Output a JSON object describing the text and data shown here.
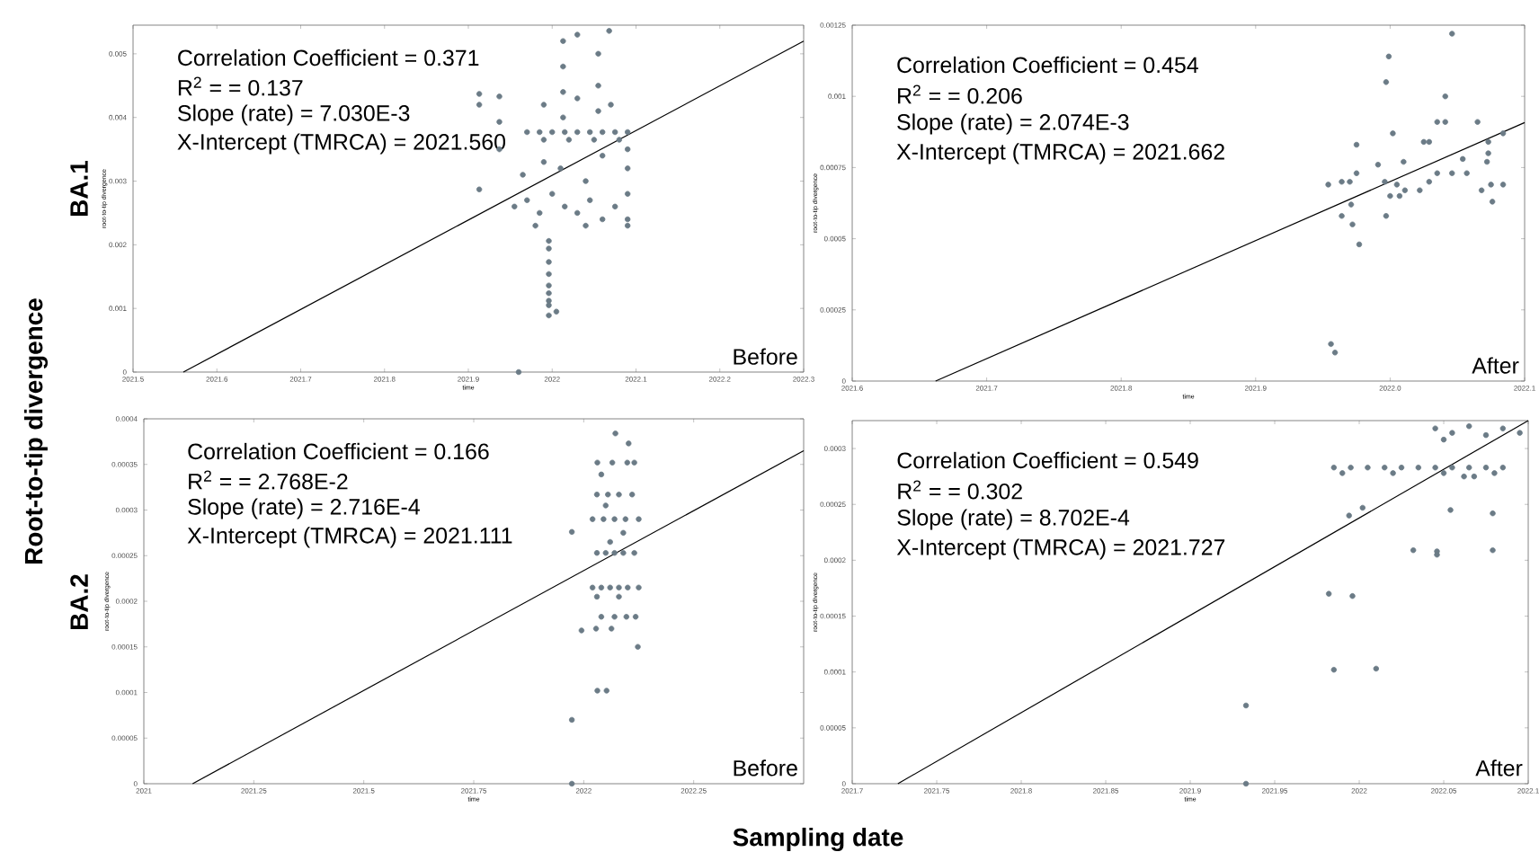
{
  "chart_data": [
    {
      "type": "scatter",
      "xlabel": "time",
      "ylabel": "root-to-tip divergence",
      "xlim": [
        2021.5,
        2022.3
      ],
      "ylim": [
        0,
        0.00545
      ],
      "xticks": [
        {
          "value": 2021.5,
          "label": "2021.5"
        },
        {
          "value": 2021.6,
          "label": "2021.6"
        },
        {
          "value": 2021.7,
          "label": "2021.7"
        },
        {
          "value": 2021.8,
          "label": "2021.8"
        },
        {
          "value": 2021.9,
          "label": "2021.9"
        },
        {
          "value": 2022,
          "label": "2022"
        },
        {
          "value": 2022.1,
          "label": "2022.1"
        },
        {
          "value": 2022.2,
          "label": "2022.2"
        },
        {
          "value": 2022.3,
          "label": "2022.3"
        }
      ],
      "yticks": [
        {
          "value": 0,
          "label": "0"
        },
        {
          "value": 0.001,
          "label": "0.001"
        },
        {
          "value": 0.002,
          "label": "0.002"
        },
        {
          "value": 0.003,
          "label": "0.003"
        },
        {
          "value": 0.004,
          "label": "0.004"
        },
        {
          "value": 0.005,
          "label": "0.005"
        }
      ],
      "annotations": [
        "Correlation Coefficient = 0.371",
        "R$^{2}$ = = 0.137",
        "Slope (rate) = 7.030E-3",
        "X-Intercept (TMRCA) = 2021.560",
        "Before",
        "BA.1",
        "Root-to-tip divergence"
      ],
      "series": [
        {
          "marker": "circle",
          "color": "#6b7b86",
          "x": [
            2021.96,
            2021.996,
            2021.996,
            2021.996,
            2021.996,
            2021.996,
            2021.996,
            2021.996,
            2021.996,
            2021.996,
            2022.005,
            2021.913,
            2021.913,
            2021.913,
            2021.937,
            2021.937,
            2021.937,
            2021.97,
            2021.985,
            2022.0,
            2022.015,
            2022.03,
            2022.045,
            2022.06,
            2022.075,
            2022.09,
            2021.99,
            2022.02,
            2022.05,
            2022.08,
            2021.955,
            2021.97,
            2021.985,
            2022.0,
            2022.015,
            2022.03,
            2022.045,
            2022.06,
            2022.075,
            2022.09,
            2022.09,
            2022.09,
            2021.98,
            2022.04,
            2021.965,
            2021.99,
            2022.01,
            2022.04,
            2022.06,
            2022.09,
            2022.09,
            2022.013,
            2022.013,
            2022.013,
            2022.013,
            2022.03,
            2022.068,
            2022.055,
            2022.055,
            2022.055,
            2021.99,
            2022.03,
            2022.07
          ],
          "values": [
            0.0,
            0.00089,
            0.00105,
            0.00112,
            0.00124,
            0.00136,
            0.00154,
            0.00173,
            0.00194,
            0.00206,
            0.00095,
            0.00437,
            0.0042,
            0.00287,
            0.00433,
            0.00393,
            0.0035,
            0.00377,
            0.00377,
            0.00377,
            0.00377,
            0.00377,
            0.00377,
            0.00377,
            0.00377,
            0.00377,
            0.00365,
            0.00365,
            0.00365,
            0.00365,
            0.0026,
            0.0027,
            0.0025,
            0.0028,
            0.0026,
            0.0025,
            0.0027,
            0.0024,
            0.0026,
            0.0028,
            0.0024,
            0.0023,
            0.0023,
            0.0023,
            0.0031,
            0.0033,
            0.0032,
            0.003,
            0.0034,
            0.0032,
            0.0035,
            0.0052,
            0.0048,
            0.0044,
            0.004,
            0.0053,
            0.00536,
            0.005,
            0.0045,
            0.0041,
            0.0042,
            0.0043,
            0.0042
          ]
        },
        {
          "type": "line",
          "marker": "none",
          "color": "#000000",
          "x": [
            2021.56,
            2022.3
          ],
          "values": [
            0,
            0.0052
          ]
        }
      ]
    },
    {
      "type": "scatter",
      "xlabel": "time",
      "ylabel": "root-to-tip divergence",
      "xlim": [
        2021.6,
        2022.1
      ],
      "ylim": [
        0,
        0.00125
      ],
      "xticks": [
        {
          "value": 2021.6,
          "label": "2021.6"
        },
        {
          "value": 2021.7,
          "label": "2021.7"
        },
        {
          "value": 2021.8,
          "label": "2021.8"
        },
        {
          "value": 2021.9,
          "label": "2021.9"
        },
        {
          "value": 2022.0,
          "label": "2022.0"
        },
        {
          "value": 2022.1,
          "label": "2022.1"
        }
      ],
      "yticks": [
        {
          "value": 0,
          "label": "0"
        },
        {
          "value": 0.00025,
          "label": "0.00025"
        },
        {
          "value": 0.0005,
          "label": "0.0005"
        },
        {
          "value": 0.00075,
          "label": "0.00075"
        },
        {
          "value": 0.001,
          "label": "0.001"
        },
        {
          "value": 0.00125,
          "label": "0.00125"
        }
      ],
      "annotations": [
        "Correlation Coefficient = 0.454",
        "R$^{2}$ = = 0.206",
        "Slope (rate) = 2.074E-3",
        "X-Intercept (TMRCA) = 2021.662",
        "After"
      ],
      "series": [
        {
          "marker": "circle",
          "color": "#6b7b86",
          "x": [
            2022.046,
            2021.999,
            2021.997,
            2022.041,
            2022.035,
            2022.041,
            2022.065,
            2022.002,
            2021.975,
            2022.025,
            2022.029,
            2022.073,
            2022.084,
            2022.01,
            2021.991,
            2022.054,
            2022.072,
            2022.073,
            2022.035,
            2022.046,
            2022.057,
            2021.954,
            2021.964,
            2021.97,
            2021.975,
            2021.996,
            2022.005,
            2022.011,
            2022.022,
            2022.029,
            2022.068,
            2022.075,
            2022.084,
            2022.076,
            2021.971,
            2021.964,
            2021.972,
            2021.997,
            2021.977,
            2021.956,
            2021.959,
            2022.0,
            2022.007
          ],
          "values": [
            0.00122,
            0.00114,
            0.00105,
            0.001,
            0.00091,
            0.00091,
            0.00091,
            0.00087,
            0.00083,
            0.00084,
            0.00084,
            0.00084,
            0.00087,
            0.00077,
            0.00076,
            0.00078,
            0.00077,
            0.0008,
            0.00073,
            0.00073,
            0.00073,
            0.00069,
            0.0007,
            0.0007,
            0.00073,
            0.0007,
            0.00069,
            0.00067,
            0.00067,
            0.0007,
            0.00067,
            0.00069,
            0.00069,
            0.00063,
            0.00062,
            0.00058,
            0.00055,
            0.00058,
            0.00048,
            0.00013,
            0.0001,
            0.00065,
            0.00065
          ]
        },
        {
          "type": "line",
          "marker": "none",
          "color": "#000000",
          "x": [
            2021.662,
            2022.1
          ],
          "values": [
            0,
            0.000908
          ]
        }
      ]
    },
    {
      "type": "scatter",
      "xlabel": "time",
      "ylabel": "root-to-tip divergence",
      "xlim": [
        2021,
        2022.5
      ],
      "ylim": [
        0,
        0.0004
      ],
      "xticks": [
        {
          "value": 2021,
          "label": "2021"
        },
        {
          "value": 2021.25,
          "label": "2021.25"
        },
        {
          "value": 2021.5,
          "label": "2021.5"
        },
        {
          "value": 2021.75,
          "label": "2021.75"
        },
        {
          "value": 2022,
          "label": "2022"
        },
        {
          "value": 2022.25,
          "label": "2022.25"
        }
      ],
      "yticks": [
        {
          "value": 0,
          "label": "0"
        },
        {
          "value": 5e-05,
          "label": "0.00005"
        },
        {
          "value": 0.0001,
          "label": "0.0001"
        },
        {
          "value": 0.00015,
          "label": "0.00015"
        },
        {
          "value": 0.0002,
          "label": "0.0002"
        },
        {
          "value": 0.00025,
          "label": "0.00025"
        },
        {
          "value": 0.0003,
          "label": "0.0003"
        },
        {
          "value": 0.00035,
          "label": "0.00035"
        },
        {
          "value": 0.0004,
          "label": "0.0004"
        }
      ],
      "annotations": [
        "Correlation Coefficient = 0.166",
        "R$^{2}$ = = 2.768E-2",
        "Slope (rate) = 2.716E-4",
        "X-Intercept (TMRCA) = 2021.111",
        "Before",
        "BA.2",
        "Sampling date"
      ],
      "series": [
        {
          "marker": "circle",
          "color": "#6b7b86",
          "x": [
            2021.973,
            2021.973,
            2022.031,
            2022.052,
            2021.973,
            2022.123,
            2022.028,
            2021.995,
            2022.063,
            2022.04,
            2022.07,
            2022.097,
            2022.118,
            2022.072,
            2022.102,
            2022.031,
            2022.065,
            2022.099,
            2022.115,
            2022.04,
            2022.02,
            2022.04,
            2022.06,
            2022.08,
            2022.1,
            2022.125,
            2022.03,
            2022.05,
            2022.07,
            2022.09,
            2022.115,
            2022.02,
            2022.045,
            2022.07,
            2022.095,
            2022.125,
            2022.03,
            2022.055,
            2022.08,
            2022.11,
            2022.03,
            2022.08,
            2022.06,
            2022.09,
            2022.05
          ],
          "values": [
            0.0,
            7e-05,
            0.000102,
            0.000102,
            0.000276,
            0.00015,
            0.00017,
            0.000168,
            0.00017,
            0.000183,
            0.000183,
            0.000183,
            0.000183,
            0.000384,
            0.000373,
            0.000352,
            0.000352,
            0.000352,
            0.000352,
            0.000339,
            0.000215,
            0.000215,
            0.000215,
            0.000215,
            0.000215,
            0.000215,
            0.000253,
            0.000253,
            0.000253,
            0.000253,
            0.000253,
            0.00029,
            0.00029,
            0.00029,
            0.00029,
            0.00029,
            0.000317,
            0.000317,
            0.000317,
            0.000317,
            0.000205,
            0.000205,
            0.000265,
            0.000275,
            0.000305
          ]
        },
        {
          "type": "line",
          "marker": "none",
          "color": "#000000",
          "x": [
            2021.111,
            2022.5
          ],
          "values": [
            0,
            0.000365
          ]
        }
      ]
    },
    {
      "type": "scatter",
      "xlabel": "time",
      "ylabel": "root-to-tip divergence",
      "xlim": [
        2021.7,
        2022.1
      ],
      "ylim": [
        0,
        0.000325
      ],
      "xticks": [
        {
          "value": 2021.7,
          "label": "2021.7"
        },
        {
          "value": 2021.75,
          "label": "2021.75"
        },
        {
          "value": 2021.8,
          "label": "2021.8"
        },
        {
          "value": 2021.85,
          "label": "2021.85"
        },
        {
          "value": 2021.9,
          "label": "2021.9"
        },
        {
          "value": 2021.95,
          "label": "2021.95"
        },
        {
          "value": 2022,
          "label": "2022"
        },
        {
          "value": 2022.05,
          "label": "2022.05"
        },
        {
          "value": 2022.1,
          "label": "2022.1"
        }
      ],
      "yticks": [
        {
          "value": 0,
          "label": "0"
        },
        {
          "value": 5e-05,
          "label": "0.00005"
        },
        {
          "value": 0.0001,
          "label": "0.0001"
        },
        {
          "value": 0.00015,
          "label": "0.00015"
        },
        {
          "value": 0.0002,
          "label": "0.0002"
        },
        {
          "value": 0.00025,
          "label": "0.00025"
        },
        {
          "value": 0.0003,
          "label": "0.0003"
        }
      ],
      "annotations": [
        "Correlation Coefficient = 0.549",
        "R$^{2}$ = = 0.302",
        "Slope (rate) = 8.702E-4",
        "X-Intercept (TMRCA) = 2021.727",
        "After"
      ],
      "series": [
        {
          "marker": "circle",
          "color": "#6b7b86",
          "x": [
            2021.933,
            2021.933,
            2021.985,
            2022.01,
            2021.982,
            2021.996,
            2022.032,
            2022.046,
            2022.046,
            2022.079,
            2022.054,
            2022.079,
            2021.994,
            2022.002,
            2021.985,
            2021.995,
            2022.005,
            2022.015,
            2022.025,
            2022.035,
            2022.045,
            2022.055,
            2022.065,
            2022.075,
            2022.085,
            2021.99,
            2022.02,
            2022.05,
            2022.08,
            2022.062,
            2022.068,
            2022.045,
            2022.055,
            2022.065,
            2022.075,
            2022.085,
            2022.095,
            2022.05
          ],
          "values": [
            0.0,
            7e-05,
            0.000102,
            0.000103,
            0.00017,
            0.000168,
            0.000209,
            0.000208,
            0.000205,
            0.000209,
            0.000245,
            0.000242,
            0.00024,
            0.000247,
            0.000283,
            0.000283,
            0.000283,
            0.000283,
            0.000283,
            0.000283,
            0.000283,
            0.000283,
            0.000283,
            0.000283,
            0.000283,
            0.000278,
            0.000278,
            0.000278,
            0.000278,
            0.000275,
            0.000275,
            0.000318,
            0.000314,
            0.00032,
            0.000312,
            0.000318,
            0.000314,
            0.000308
          ]
        },
        {
          "type": "line",
          "marker": "none",
          "color": "#000000",
          "x": [
            2021.727,
            2022.1
          ],
          "values": [
            0,
            0.000325
          ]
        }
      ]
    }
  ]
}
